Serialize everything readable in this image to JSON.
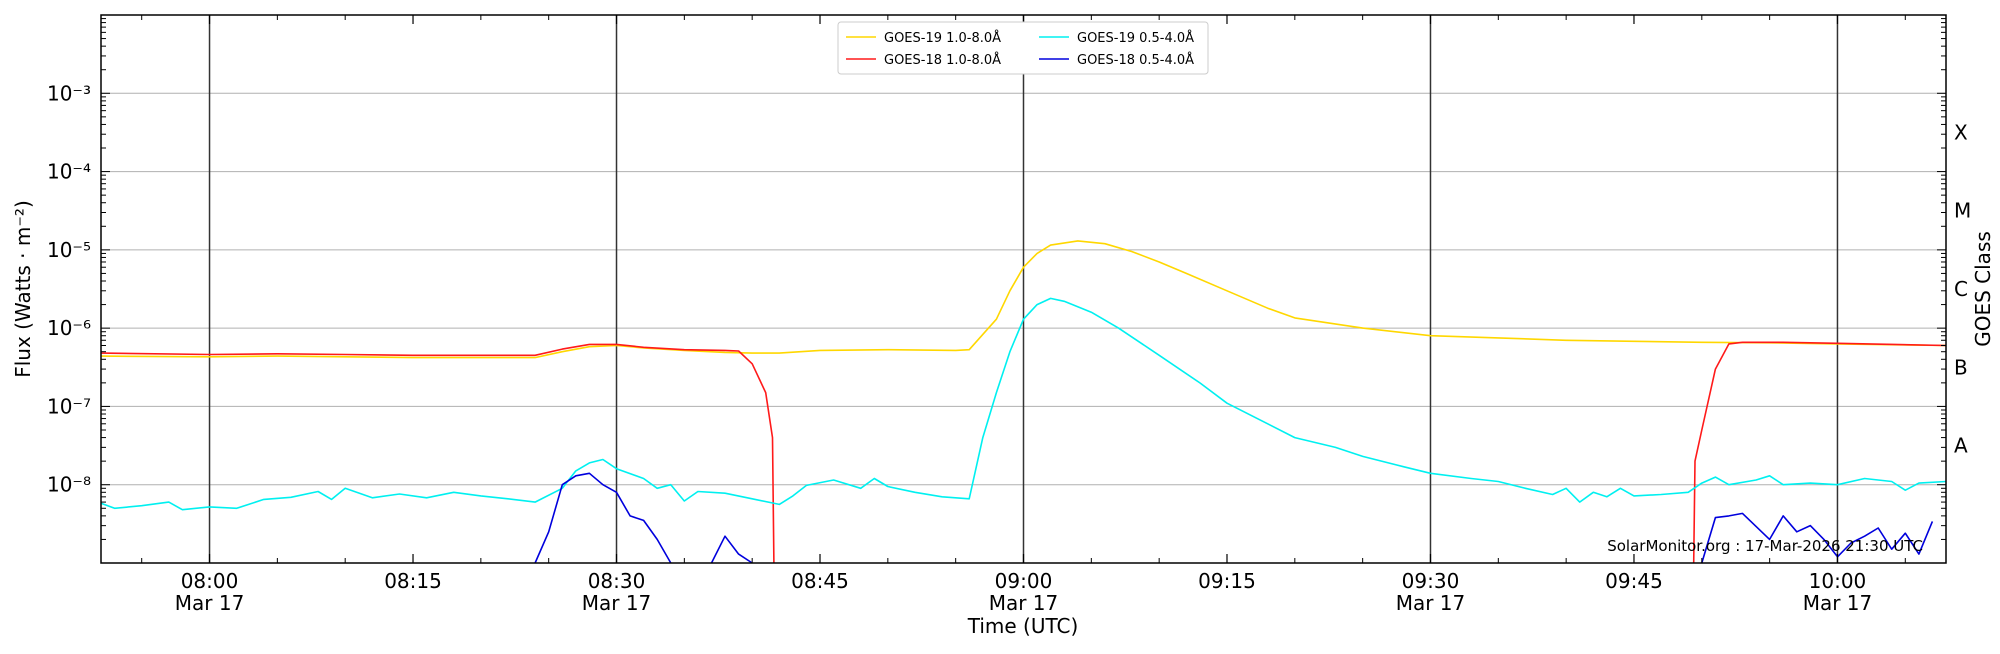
{
  "chart_data": {
    "type": "line",
    "xlabel": "Time (UTC)",
    "ylabel": "Flux (Watts · m⁻²)",
    "ylabel_right": "GOES Class",
    "yscale": "log",
    "xlim": [
      "07:52",
      "10:08"
    ],
    "ylim": [
      1e-09,
      0.01
    ],
    "grid": "horizontal",
    "legend_position": "top-center",
    "credit": "SolarMonitor.org : 17-Mar-2026 21:30 UTC",
    "x_ticks": [
      {
        "time": "08:00",
        "label": "08:00",
        "sublabel": "Mar 17"
      },
      {
        "time": "08:15",
        "label": "08:15",
        "sublabel": ""
      },
      {
        "time": "08:30",
        "label": "08:30",
        "sublabel": "Mar 17"
      },
      {
        "time": "08:45",
        "label": "08:45",
        "sublabel": ""
      },
      {
        "time": "09:00",
        "label": "09:00",
        "sublabel": "Mar 17"
      },
      {
        "time": "09:15",
        "label": "09:15",
        "sublabel": ""
      },
      {
        "time": "09:30",
        "label": "09:30",
        "sublabel": "Mar 17"
      },
      {
        "time": "09:45",
        "label": "09:45",
        "sublabel": ""
      },
      {
        "time": "10:00",
        "label": "10:00",
        "sublabel": "Mar 17"
      }
    ],
    "y_ticks": [
      {
        "exp": -8,
        "label": "10⁻⁸"
      },
      {
        "exp": -7,
        "label": "10⁻⁷"
      },
      {
        "exp": -6,
        "label": "10⁻⁶"
      },
      {
        "exp": -5,
        "label": "10⁻⁵"
      },
      {
        "exp": -4,
        "label": "10⁻⁴"
      },
      {
        "exp": -3,
        "label": "10⁻³"
      }
    ],
    "vertical_lines": [
      "08:00",
      "08:30",
      "09:00",
      "09:30",
      "10:00"
    ],
    "goes_classes": [
      {
        "label": "A",
        "exp": -8
      },
      {
        "label": "B",
        "exp": -7
      },
      {
        "label": "C",
        "exp": -6
      },
      {
        "label": "M",
        "exp": -5
      },
      {
        "label": "X",
        "exp": -4
      }
    ],
    "series": [
      {
        "name": "GOES-19 1.0-8.0Å",
        "color": "#ffd700",
        "points": [
          [
            "07:52",
            4.4e-07
          ],
          [
            "08:00",
            4.3e-07
          ],
          [
            "08:05",
            4.4e-07
          ],
          [
            "08:10",
            4.3e-07
          ],
          [
            "08:15",
            4.2e-07
          ],
          [
            "08:20",
            4.2e-07
          ],
          [
            "08:24",
            4.2e-07
          ],
          [
            "08:26",
            5e-07
          ],
          [
            "08:28",
            5.8e-07
          ],
          [
            "08:30",
            6e-07
          ],
          [
            "08:32",
            5.6e-07
          ],
          [
            "08:35",
            5.2e-07
          ],
          [
            "08:38",
            4.9e-07
          ],
          [
            "08:40",
            4.8e-07
          ],
          [
            "08:42",
            4.8e-07
          ],
          [
            "08:45",
            5.2e-07
          ],
          [
            "08:50",
            5.3e-07
          ],
          [
            "08:55",
            5.2e-07
          ],
          [
            "08:56",
            5.3e-07
          ],
          [
            "08:58",
            1.3e-06
          ],
          [
            "08:59",
            3e-06
          ],
          [
            "09:00",
            6e-06
          ],
          [
            "09:01",
            9e-06
          ],
          [
            "09:02",
            1.15e-05
          ],
          [
            "09:04",
            1.3e-05
          ],
          [
            "09:06",
            1.2e-05
          ],
          [
            "09:08",
            9.5e-06
          ],
          [
            "09:10",
            7e-06
          ],
          [
            "09:12",
            5e-06
          ],
          [
            "09:15",
            3e-06
          ],
          [
            "09:18",
            1.8e-06
          ],
          [
            "09:20",
            1.35e-06
          ],
          [
            "09:25",
            1e-06
          ],
          [
            "09:30",
            8e-07
          ],
          [
            "09:35",
            7.5e-07
          ],
          [
            "09:40",
            7e-07
          ],
          [
            "09:45",
            6.8e-07
          ],
          [
            "09:50",
            6.6e-07
          ],
          [
            "09:55",
            6.5e-07
          ],
          [
            "10:00",
            6.3e-07
          ],
          [
            "10:08",
            6e-07
          ]
        ]
      },
      {
        "name": "GOES-18 1.0-8.0Å",
        "color": "#ff1a1a",
        "points": [
          [
            "07:52",
            4.8e-07
          ],
          [
            "08:00",
            4.6e-07
          ],
          [
            "08:05",
            4.7e-07
          ],
          [
            "08:10",
            4.6e-07
          ],
          [
            "08:15",
            4.5e-07
          ],
          [
            "08:20",
            4.5e-07
          ],
          [
            "08:24",
            4.5e-07
          ],
          [
            "08:26",
            5.4e-07
          ],
          [
            "08:28",
            6.2e-07
          ],
          [
            "08:30",
            6.2e-07
          ],
          [
            "08:32",
            5.7e-07
          ],
          [
            "08:35",
            5.3e-07
          ],
          [
            "08:38",
            5.2e-07
          ],
          [
            "08:39",
            5.1e-07
          ],
          [
            "08:40",
            3.5e-07
          ],
          [
            "08:41",
            1.5e-07
          ],
          [
            "08:41.5",
            4e-08
          ],
          [
            "08:41.6",
            1e-09
          ],
          null,
          [
            "09:49.4",
            1e-09
          ],
          [
            "09:49.5",
            2e-08
          ],
          [
            "09:50",
            5e-08
          ],
          [
            "09:51",
            3e-07
          ],
          [
            "09:52",
            6.3e-07
          ],
          [
            "09:53",
            6.6e-07
          ],
          [
            "09:56",
            6.6e-07
          ],
          [
            "10:00",
            6.4e-07
          ],
          [
            "10:08",
            6e-07
          ]
        ]
      },
      {
        "name": "GOES-19 0.5-4.0Å",
        "color": "#00f0f0",
        "points": [
          [
            "07:52",
            5.8e-09
          ],
          [
            "07:53",
            5e-09
          ],
          [
            "07:55",
            5.4e-09
          ],
          [
            "07:57",
            6e-09
          ],
          [
            "07:58",
            4.8e-09
          ],
          [
            "08:00",
            5.2e-09
          ],
          [
            "08:02",
            5e-09
          ],
          [
            "08:04",
            6.5e-09
          ],
          [
            "08:06",
            6.9e-09
          ],
          [
            "08:08",
            8.2e-09
          ],
          [
            "08:09",
            6.5e-09
          ],
          [
            "08:10",
            9e-09
          ],
          [
            "08:12",
            6.8e-09
          ],
          [
            "08:14",
            7.6e-09
          ],
          [
            "08:16",
            6.8e-09
          ],
          [
            "08:18",
            8e-09
          ],
          [
            "08:20",
            7.2e-09
          ],
          [
            "08:22",
            6.6e-09
          ],
          [
            "08:24",
            6e-09
          ],
          [
            "08:26",
            9e-09
          ],
          [
            "08:27",
            1.5e-08
          ],
          [
            "08:28",
            1.9e-08
          ],
          [
            "08:29",
            2.1e-08
          ],
          [
            "08:30",
            1.6e-08
          ],
          [
            "08:32",
            1.2e-08
          ],
          [
            "08:33",
            9e-09
          ],
          [
            "08:34",
            1e-08
          ],
          [
            "08:35",
            6.2e-09
          ],
          [
            "08:36",
            8.2e-09
          ],
          [
            "08:38",
            7.8e-09
          ],
          [
            "08:40",
            6.6e-09
          ],
          [
            "08:42",
            5.6e-09
          ],
          [
            "08:43",
            7.2e-09
          ],
          [
            "08:44",
            9.8e-09
          ],
          [
            "08:46",
            1.15e-08
          ],
          [
            "08:48",
            9e-09
          ],
          [
            "08:49",
            1.2e-08
          ],
          [
            "08:50",
            9.5e-09
          ],
          [
            "08:52",
            8e-09
          ],
          [
            "08:54",
            7e-09
          ],
          [
            "08:56",
            6.6e-09
          ],
          [
            "08:57",
            4e-08
          ],
          [
            "08:58",
            1.5e-07
          ],
          [
            "08:59",
            5e-07
          ],
          [
            "09:00",
            1.3e-06
          ],
          [
            "09:01",
            2e-06
          ],
          [
            "09:02",
            2.4e-06
          ],
          [
            "09:03",
            2.2e-06
          ],
          [
            "09:05",
            1.6e-06
          ],
          [
            "09:07",
            1e-06
          ],
          [
            "09:10",
            4.5e-07
          ],
          [
            "09:13",
            2e-07
          ],
          [
            "09:15",
            1.1e-07
          ],
          [
            "09:18",
            6e-08
          ],
          [
            "09:20",
            4e-08
          ],
          [
            "09:23",
            3e-08
          ],
          [
            "09:25",
            2.3e-08
          ],
          [
            "09:28",
            1.7e-08
          ],
          [
            "09:30",
            1.4e-08
          ],
          [
            "09:33",
            1.2e-08
          ],
          [
            "09:35",
            1.1e-08
          ],
          [
            "09:37",
            9e-09
          ],
          [
            "09:39",
            7.5e-09
          ],
          [
            "09:40",
            9e-09
          ],
          [
            "09:41",
            6e-09
          ],
          [
            "09:42",
            8e-09
          ],
          [
            "09:43",
            7e-09
          ],
          [
            "09:44",
            9e-09
          ],
          [
            "09:45",
            7.2e-09
          ],
          [
            "09:47",
            7.5e-09
          ],
          [
            "09:49",
            8e-09
          ],
          [
            "09:50",
            1.05e-08
          ],
          [
            "09:51",
            1.25e-08
          ],
          [
            "09:52",
            1e-08
          ],
          [
            "09:54",
            1.15e-08
          ],
          [
            "09:55",
            1.3e-08
          ],
          [
            "09:56",
            1e-08
          ],
          [
            "09:58",
            1.05e-08
          ],
          [
            "10:00",
            1e-08
          ],
          [
            "10:02",
            1.2e-08
          ],
          [
            "10:04",
            1.1e-08
          ],
          [
            "10:05",
            8.5e-09
          ],
          [
            "10:06",
            1.05e-08
          ],
          [
            "10:08",
            1.1e-08
          ]
        ]
      },
      {
        "name": "GOES-18 0.5-4.0Å",
        "color": "#0000dd",
        "points": [
          [
            "08:24",
            1e-09
          ],
          [
            "08:25",
            2.5e-09
          ],
          [
            "08:26",
            1e-08
          ],
          [
            "08:27",
            1.3e-08
          ],
          [
            "08:28",
            1.4e-08
          ],
          [
            "08:29",
            1e-08
          ],
          [
            "08:30",
            8e-09
          ],
          [
            "08:31",
            4e-09
          ],
          [
            "08:32",
            3.5e-09
          ],
          [
            "08:33",
            2e-09
          ],
          [
            "08:34",
            1e-09
          ],
          null,
          [
            "08:37",
            1e-09
          ],
          [
            "08:38",
            2.2e-09
          ],
          [
            "08:39",
            1.3e-09
          ],
          [
            "08:40",
            1e-09
          ],
          null,
          [
            "09:50",
            1e-09
          ],
          [
            "09:51",
            3.8e-09
          ],
          [
            "09:52",
            4e-09
          ],
          [
            "09:53",
            4.3e-09
          ],
          [
            "09:55",
            2e-09
          ],
          [
            "09:56",
            4e-09
          ],
          [
            "09:57",
            2.5e-09
          ],
          [
            "09:58",
            3e-09
          ],
          [
            "09:59",
            2e-09
          ],
          [
            "10:00",
            1.2e-09
          ],
          [
            "10:01",
            1.8e-09
          ],
          [
            "10:02",
            2.2e-09
          ],
          [
            "10:03",
            2.8e-09
          ],
          [
            "10:04",
            1.5e-09
          ],
          [
            "10:05",
            2.4e-09
          ],
          [
            "10:06",
            1.3e-09
          ],
          [
            "10:07",
            3.4e-09
          ]
        ]
      }
    ]
  }
}
